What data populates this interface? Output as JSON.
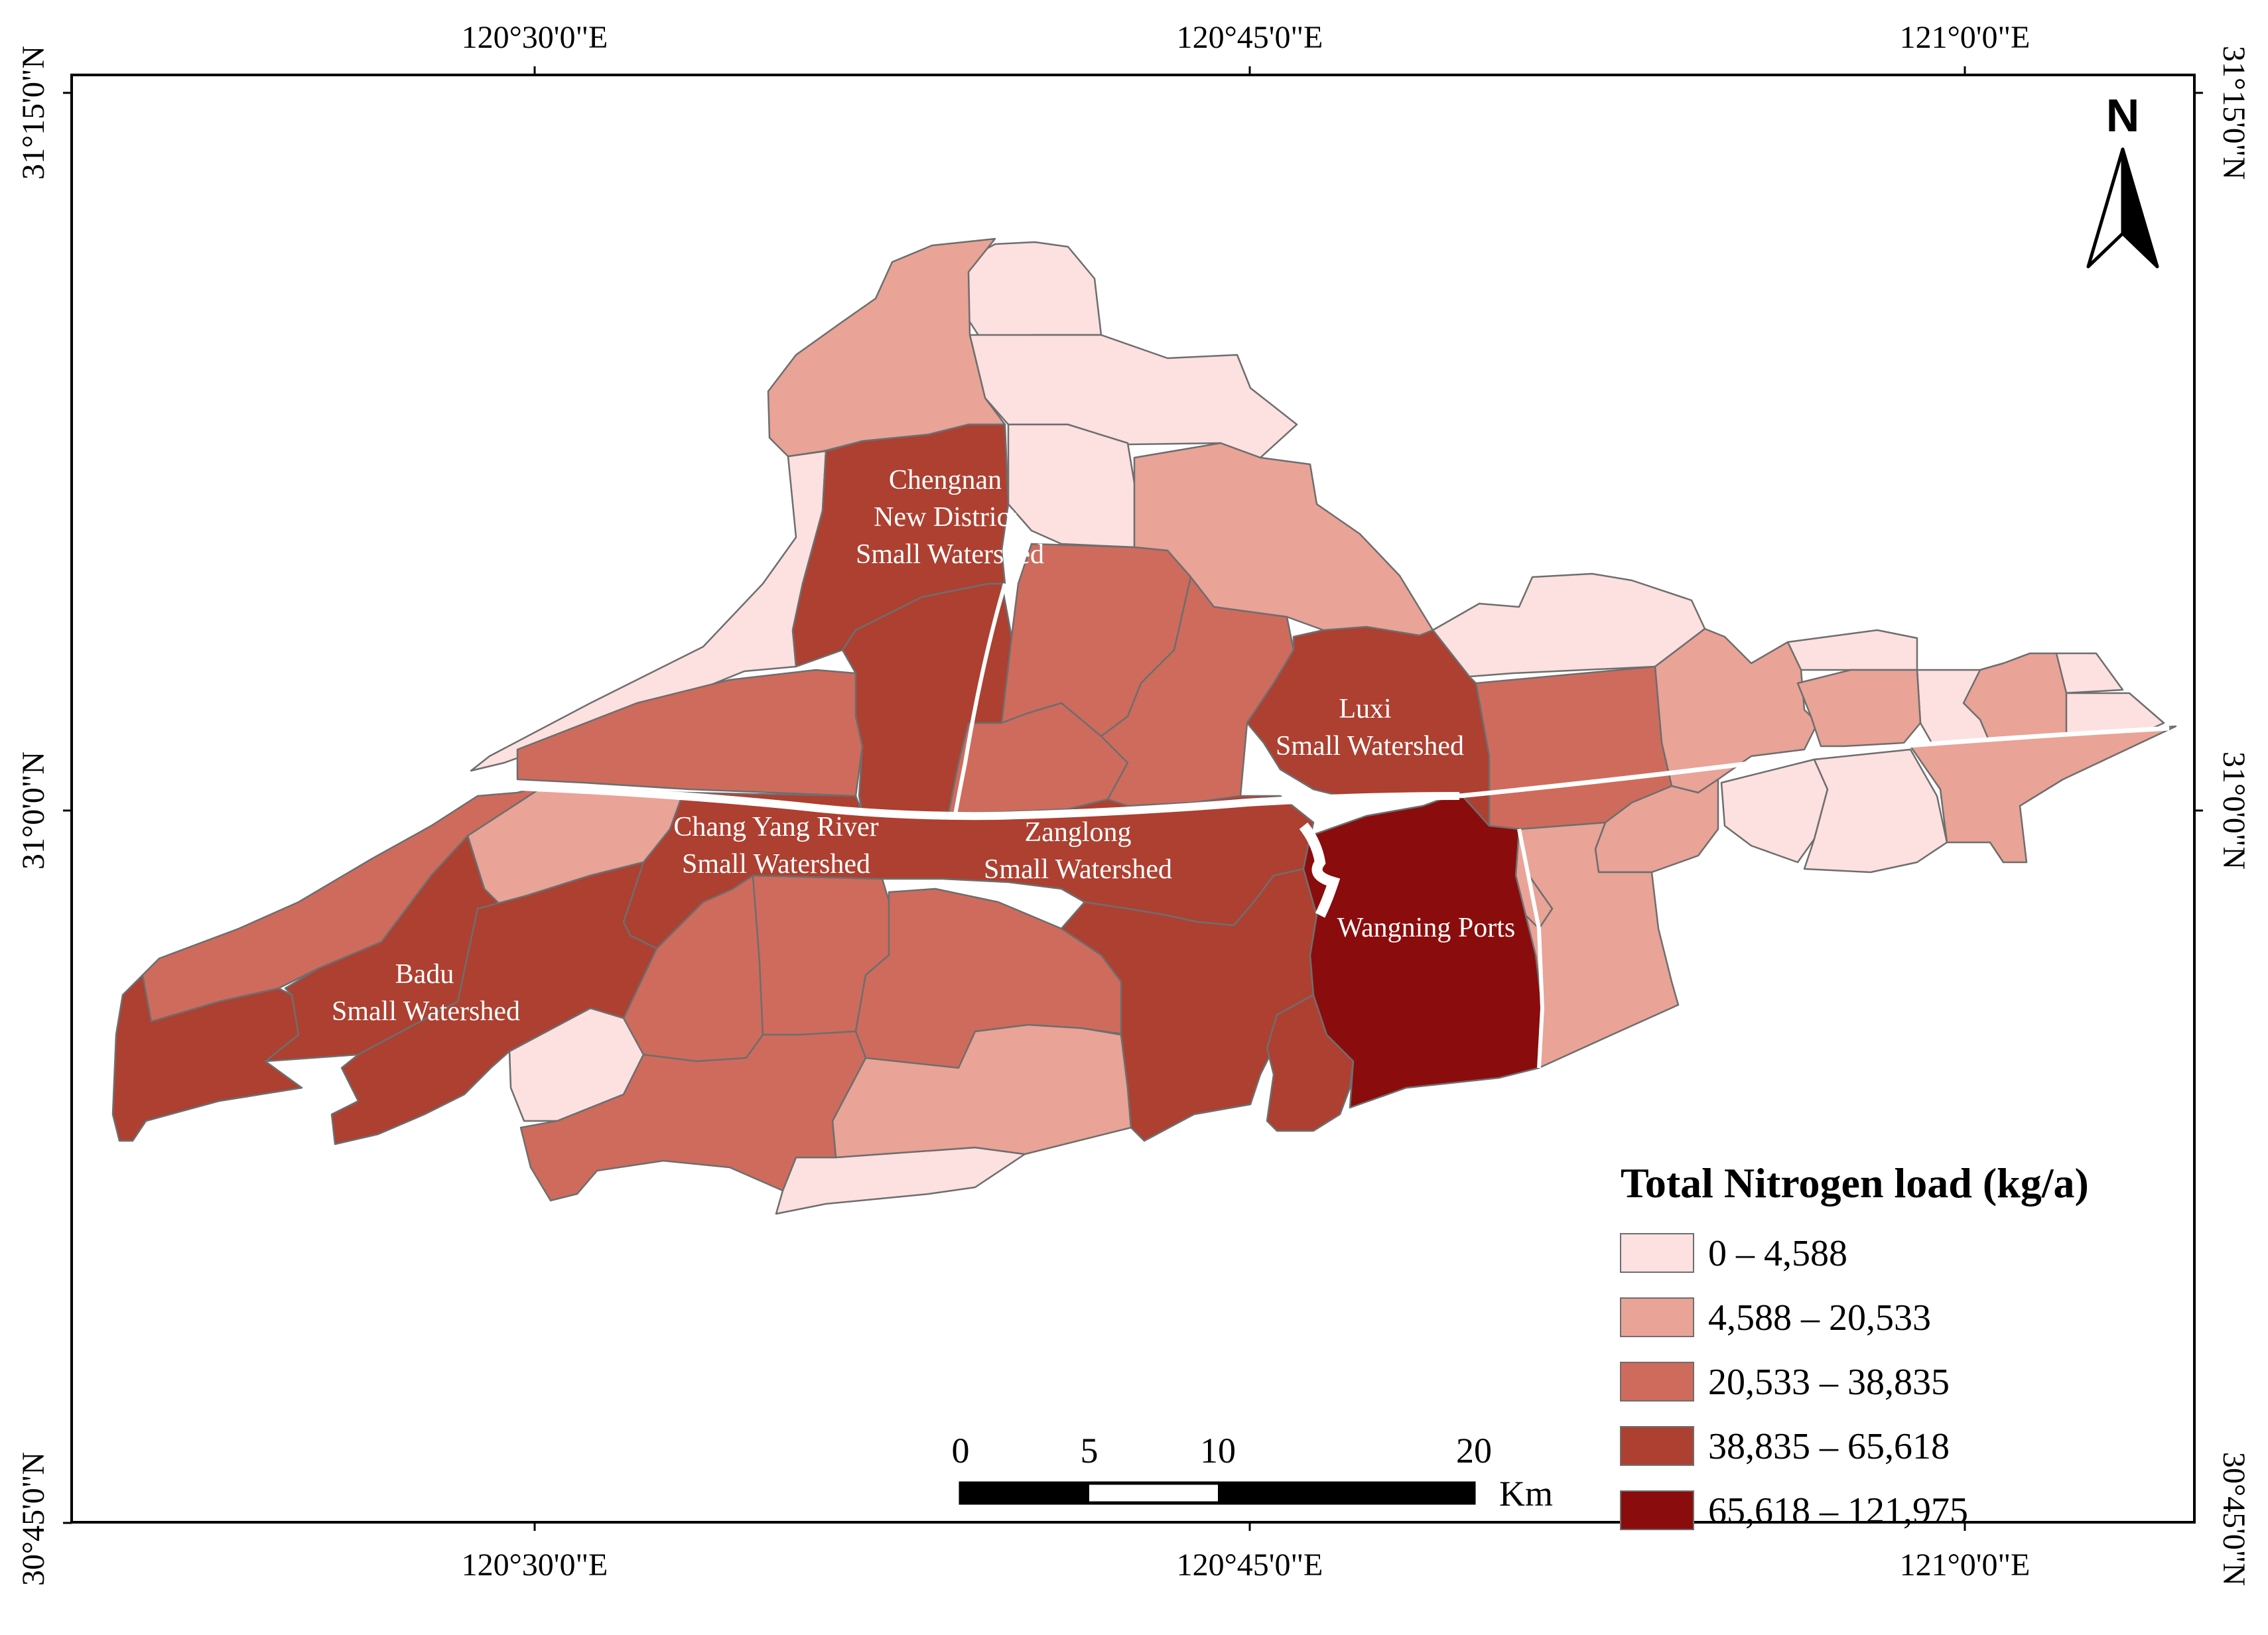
{
  "coordinates": {
    "top_lon": [
      "120°30'0\"E",
      "120°45'0\"E",
      "121°0'0\"E"
    ],
    "bottom_lon": [
      "120°30'0\"E",
      "120°45'0\"E",
      "121°0'0\"E"
    ],
    "left_lat": [
      "31°15'0\"N",
      "31°0'0\"N",
      "30°45'0\"N"
    ],
    "right_lat": [
      "31°15'0\"N",
      "31°0'0\"N",
      "30°45'0\"N"
    ]
  },
  "north_arrow": {
    "label": "N",
    "icon": "north-arrow-icon"
  },
  "watersheds": {
    "chengnan": [
      "Chengnan",
      "New District",
      "Small Watershed"
    ],
    "luxi": [
      "Luxi",
      "Small Watershed"
    ],
    "changyang": [
      "Chang Yang River",
      "Small Watershed"
    ],
    "zanglong": [
      "Zanglong",
      "Small Watershed"
    ],
    "badu": [
      "Badu",
      "Small Watershed"
    ],
    "wangning": [
      "Wangning Ports"
    ]
  },
  "legend": {
    "title": "Total Nitrogen load (kg/a)",
    "classes": [
      {
        "label": "0 – 4,588",
        "color": "#fde0e0"
      },
      {
        "label": "4,588 – 20,533",
        "color": "#e9a397"
      },
      {
        "label": "20,533 – 38,835",
        "color": "#cf6b5c"
      },
      {
        "label": "38,835 – 65,618",
        "color": "#ad4031"
      },
      {
        "label": "65,618 – 121,975",
        "color": "#8b0c0c"
      }
    ]
  },
  "scale_bar": {
    "ticks": [
      "0",
      "5",
      "10",
      "20"
    ],
    "unit": "Km"
  }
}
